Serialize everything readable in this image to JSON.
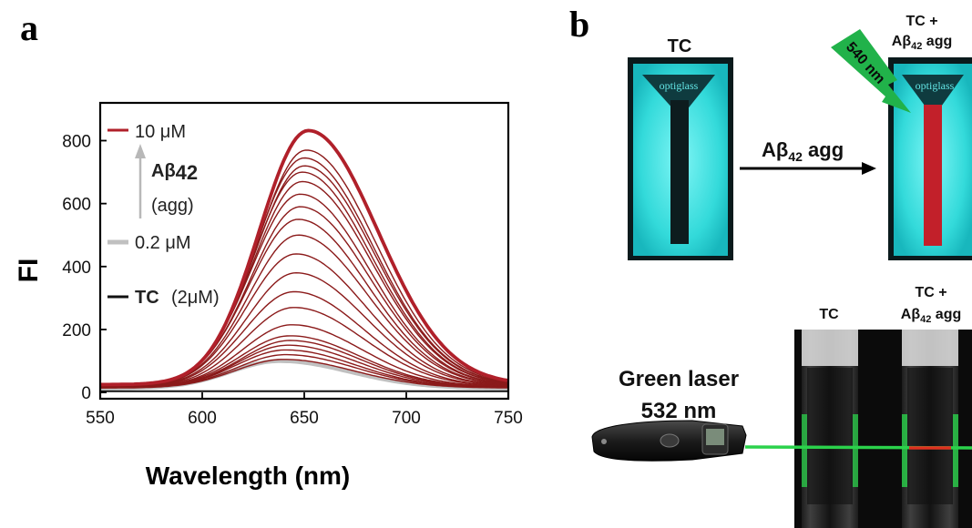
{
  "panel_a": {
    "letter": "a",
    "chart_data": {
      "type": "line",
      "xlabel": "Wavelength (nm)",
      "ylabel": "FI",
      "xlim": [
        550,
        750
      ],
      "ylim": [
        -20,
        920
      ],
      "xticks": [
        550,
        600,
        650,
        700,
        750
      ],
      "yticks": [
        0,
        200,
        400,
        600,
        800
      ],
      "grid": false,
      "legend_position": "top-left",
      "legend": {
        "high": "10 μM",
        "analyte_main": "Aβ",
        "analyte_sub": "42",
        "analyte_state": "(agg)",
        "low": "0.2 μM",
        "tc_bold": "TC",
        "tc_conc": "(2μM)"
      },
      "colors": {
        "high": "#b0202a",
        "series": "#8b1a1a",
        "low": "#c0c0c0",
        "tc": "#111111"
      },
      "series": [
        {
          "peak_x": 640,
          "peak_y": 105,
          "base_y": 14
        },
        {
          "peak_x": 641,
          "peak_y": 120,
          "base_y": 15
        },
        {
          "peak_x": 641,
          "peak_y": 135,
          "base_y": 15
        },
        {
          "peak_x": 642,
          "peak_y": 150,
          "base_y": 16
        },
        {
          "peak_x": 643,
          "peak_y": 165,
          "base_y": 16
        },
        {
          "peak_x": 643,
          "peak_y": 180,
          "base_y": 17
        },
        {
          "peak_x": 644,
          "peak_y": 215,
          "base_y": 17
        },
        {
          "peak_x": 645,
          "peak_y": 270,
          "base_y": 18
        },
        {
          "peak_x": 645,
          "peak_y": 320,
          "base_y": 18
        },
        {
          "peak_x": 646,
          "peak_y": 380,
          "base_y": 19
        },
        {
          "peak_x": 646,
          "peak_y": 440,
          "base_y": 19
        },
        {
          "peak_x": 647,
          "peak_y": 500,
          "base_y": 20
        },
        {
          "peak_x": 647,
          "peak_y": 550,
          "base_y": 20
        },
        {
          "peak_x": 648,
          "peak_y": 590,
          "base_y": 21
        },
        {
          "peak_x": 648,
          "peak_y": 630,
          "base_y": 21
        },
        {
          "peak_x": 649,
          "peak_y": 670,
          "base_y": 22
        },
        {
          "peak_x": 649,
          "peak_y": 700,
          "base_y": 22
        },
        {
          "peak_x": 650,
          "peak_y": 720,
          "base_y": 23
        },
        {
          "peak_x": 650,
          "peak_y": 745,
          "base_y": 23
        },
        {
          "peak_x": 651,
          "peak_y": 770,
          "base_y": 24
        }
      ],
      "series_low": {
        "peak_x": 638,
        "peak_y": 100,
        "base_y": 14
      },
      "series_high": {
        "peak_x": 652,
        "peak_y": 832,
        "base_y": 25
      },
      "series_tc": {
        "level": 4
      }
    }
  },
  "panel_b": {
    "letter": "b",
    "top": {
      "left_label": "TC",
      "right_label_line1": "TC +",
      "right_label_line2": "Aβ",
      "right_label_sub": "42",
      "right_label_tail": " agg",
      "arrow_main": "Aβ",
      "arrow_sub": "42",
      "arrow_tail": " agg",
      "cuvette_brand": "optiglass",
      "excitation": "540 nm"
    },
    "bottom": {
      "laser_title": "Green laser",
      "laser_wavelength": "532 nm",
      "left_label": "TC",
      "right_label_line1": "TC +",
      "right_label_line2": "Aβ",
      "right_label_sub": "42",
      "right_label_tail": " agg"
    },
    "colors": {
      "cuvette_glow": "#2fe0e0",
      "red_signal": "#c2202a",
      "laser_green": "#2bd24b",
      "laser_label_green": "#1fb54a"
    }
  }
}
